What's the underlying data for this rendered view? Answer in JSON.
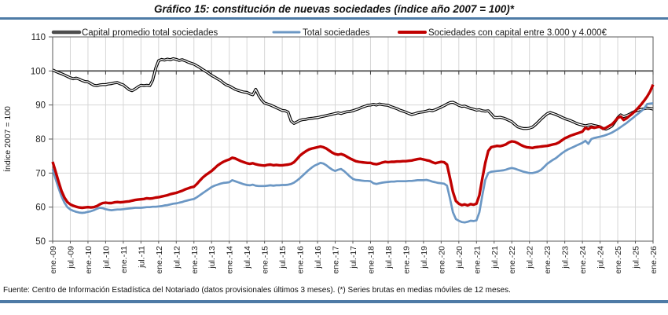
{
  "title": "Gráfico 15: constitución de nuevas sociedades (índice año 2007 = 100)*",
  "footer": {
    "text": "Fuente: Centro de Información Estadística del Notariado (datos provisionales últimos 3 meses). (*) Series brutas en medias móviles de 12 meses."
  },
  "colors": {
    "rule_blue": "#4e7ba6",
    "grid": "#d6d6d6",
    "plot_border": "#595959",
    "axis_100_line": "#3f3f3f",
    "tick": "#595959",
    "text": "#1f1f1f",
    "series_black": "#000000",
    "series_black_center": "#ffffff",
    "series_black_legend": "#4d4d4d",
    "series_blue": "#6b97c4",
    "series_red": "#c00000"
  },
  "chart_data": {
    "type": "line",
    "title": "Gráfico 15: constitución de nuevas sociedades (índice año 2007 = 100)*",
    "ylabel": "Índice 2007 = 100",
    "ylim": [
      50,
      110
    ],
    "yticks": [
      50,
      60,
      70,
      80,
      90,
      100,
      110
    ],
    "grid": true,
    "legend_position": "top",
    "x_axis_cross_value": 100,
    "months_start": "ene-09",
    "months_end": "ene-26",
    "x_tick_labels": [
      "ene.-09",
      "jul.-09",
      "ene.-10",
      "jul.-10",
      "ene.-11",
      "jul.-11",
      "ene.-12",
      "jul.-12",
      "ene.-13",
      "jul.-13",
      "ene.-14",
      "jul.-14",
      "ene.-15",
      "jul.-15",
      "ene.-16",
      "jul.-16",
      "ene.-17",
      "jul.-17",
      "ene.-18",
      "jul.-18",
      "ene.-19",
      "jul.-19",
      "ene.-20",
      "jul.-20",
      "ene.-21",
      "jul.-21",
      "ene.-22",
      "jul.-22",
      "ene.-23",
      "jul.-23",
      "ene.-24",
      "jul.-24",
      "ene.-25",
      "jul.-25",
      "ene.-26"
    ],
    "series": [
      {
        "name": "Capital promedio total sociedades",
        "color_key": "series_black",
        "line_style": "double-outline",
        "values": [
          100.3,
          99.9,
          99.5,
          99.2,
          98.8,
          98.4,
          98.0,
          97.7,
          97.9,
          97.6,
          97.2,
          96.9,
          96.8,
          96.3,
          95.8,
          95.7,
          95.9,
          96.0,
          96.0,
          96.2,
          96.3,
          96.5,
          96.6,
          96.2,
          95.9,
          95.2,
          94.5,
          94.2,
          94.7,
          95.3,
          95.8,
          95.7,
          95.8,
          95.7,
          97.3,
          100.8,
          103.0,
          103.4,
          103.2,
          103.5,
          103.3,
          103.6,
          103.4,
          103.1,
          103.3,
          103.0,
          102.6,
          102.3,
          102.0,
          101.5,
          101.0,
          100.4,
          99.9,
          99.3,
          98.7,
          98.2,
          97.7,
          97.2,
          96.5,
          95.9,
          95.6,
          95.1,
          94.6,
          94.3,
          94.0,
          93.8,
          93.7,
          93.3,
          93.0,
          94.6,
          92.8,
          91.5,
          90.6,
          90.3,
          90.0,
          89.6,
          89.2,
          88.8,
          88.4,
          88.3,
          87.9,
          85.3,
          84.6,
          85.0,
          85.5,
          85.7,
          85.8,
          86.0,
          86.1,
          86.2,
          86.3,
          86.5,
          86.7,
          86.9,
          87.1,
          87.3,
          87.5,
          87.7,
          87.5,
          87.8,
          88.0,
          88.1,
          88.3,
          88.6,
          88.9,
          89.3,
          89.6,
          89.9,
          90.0,
          90.2,
          90.0,
          90.3,
          90.1,
          90.0,
          89.9,
          89.5,
          89.2,
          88.9,
          88.5,
          88.2,
          87.9,
          87.5,
          87.2,
          87.4,
          87.7,
          87.9,
          88.0,
          88.2,
          88.5,
          88.3,
          88.6,
          89.0,
          89.4,
          89.8,
          90.3,
          90.7,
          90.8,
          90.4,
          89.9,
          89.6,
          89.7,
          89.3,
          89.0,
          88.8,
          88.5,
          88.6,
          88.3,
          88.2,
          88.3,
          87.4,
          86.4,
          86.3,
          86.4,
          86.2,
          85.9,
          85.5,
          85.1,
          84.3,
          83.6,
          83.3,
          83.1,
          83.1,
          83.2,
          83.5,
          84.2,
          85.0,
          85.9,
          86.7,
          87.4,
          87.8,
          87.5,
          87.2,
          86.8,
          86.4,
          86.0,
          85.7,
          85.4,
          85.0,
          84.6,
          84.3,
          84.1,
          83.9,
          84.1,
          84.2,
          84.0,
          83.8,
          83.6,
          83.1,
          82.9,
          83.3,
          83.8,
          85.0,
          86.3,
          87.1,
          86.6,
          86.9,
          87.3,
          87.8,
          88.2,
          88.5,
          88.7,
          88.9,
          89.1,
          89.0,
          88.8
        ]
      },
      {
        "name": "Total sociedades",
        "color_key": "series_blue",
        "line_style": "solid",
        "values": [
          71.2,
          68.3,
          65.6,
          63.2,
          61.3,
          60.0,
          59.3,
          58.9,
          58.6,
          58.4,
          58.3,
          58.4,
          58.6,
          58.8,
          59.1,
          59.5,
          59.8,
          59.7,
          59.4,
          59.2,
          59.1,
          59.2,
          59.3,
          59.3,
          59.4,
          59.5,
          59.6,
          59.7,
          59.8,
          59.8,
          59.8,
          59.9,
          60.0,
          60.0,
          60.1,
          60.1,
          60.2,
          60.3,
          60.5,
          60.6,
          60.8,
          61.0,
          61.1,
          61.3,
          61.5,
          61.8,
          62.0,
          62.2,
          62.4,
          62.9,
          63.5,
          64.1,
          64.7,
          65.3,
          65.9,
          66.3,
          66.6,
          66.9,
          67.1,
          67.2,
          67.3,
          67.9,
          67.6,
          67.3,
          67.0,
          66.7,
          66.5,
          66.4,
          66.6,
          66.3,
          66.2,
          66.2,
          66.2,
          66.3,
          66.4,
          66.3,
          66.4,
          66.4,
          66.5,
          66.5,
          66.6,
          66.8,
          67.2,
          67.8,
          68.5,
          69.3,
          70.1,
          70.9,
          71.6,
          72.2,
          72.6,
          73.0,
          72.8,
          72.3,
          71.6,
          71.0,
          70.6,
          71.0,
          71.2,
          70.6,
          69.8,
          69.0,
          68.3,
          68.0,
          67.9,
          67.8,
          67.7,
          67.7,
          67.6,
          67.0,
          66.8,
          67.0,
          67.2,
          67.3,
          67.4,
          67.5,
          67.5,
          67.6,
          67.6,
          67.6,
          67.6,
          67.7,
          67.7,
          67.8,
          67.9,
          67.9,
          67.9,
          68.0,
          67.8,
          67.5,
          67.3,
          67.1,
          67.0,
          66.9,
          66.3,
          62.5,
          58.5,
          56.5,
          56.0,
          55.6,
          55.5,
          55.7,
          56.0,
          55.9,
          56.1,
          58.5,
          63.5,
          68.0,
          70.0,
          70.4,
          70.5,
          70.6,
          70.7,
          70.8,
          71.0,
          71.3,
          71.5,
          71.3,
          71.0,
          70.7,
          70.4,
          70.2,
          70.0,
          70.0,
          70.2,
          70.5,
          71.0,
          71.8,
          72.7,
          73.3,
          73.9,
          74.4,
          75.1,
          75.8,
          76.4,
          76.9,
          77.3,
          77.7,
          78.1,
          78.5,
          78.9,
          79.5,
          78.6,
          80.0,
          80.3,
          80.5,
          80.7,
          80.9,
          81.2,
          81.5,
          81.9,
          82.4,
          82.9,
          83.5,
          84.1,
          84.7,
          85.4,
          86.1,
          86.8,
          87.5,
          88.2,
          89.0,
          90.3,
          90.4,
          90.5
        ]
      },
      {
        "name": "Sociedades con capital entre 3.000 y 4.000€",
        "color_key": "series_red",
        "line_style": "solid",
        "values": [
          73.3,
          70.5,
          67.5,
          64.8,
          62.8,
          61.5,
          60.8,
          60.4,
          60.1,
          59.9,
          59.8,
          59.9,
          60.0,
          59.9,
          60.0,
          60.3,
          60.8,
          61.2,
          61.3,
          61.2,
          61.2,
          61.4,
          61.5,
          61.4,
          61.5,
          61.6,
          61.7,
          61.9,
          62.1,
          62.2,
          62.3,
          62.4,
          62.6,
          62.5,
          62.6,
          62.8,
          62.9,
          63.1,
          63.3,
          63.5,
          63.8,
          64.0,
          64.2,
          64.5,
          64.8,
          65.2,
          65.5,
          65.8,
          66.0,
          66.8,
          67.8,
          68.7,
          69.4,
          70.0,
          70.6,
          71.4,
          72.2,
          72.8,
          73.3,
          73.7,
          74.0,
          74.5,
          74.3,
          73.9,
          73.5,
          73.2,
          72.9,
          72.7,
          72.9,
          72.6,
          72.4,
          72.3,
          72.2,
          72.4,
          72.5,
          72.3,
          72.4,
          72.3,
          72.3,
          72.4,
          72.5,
          72.7,
          73.2,
          74.1,
          75.1,
          75.8,
          76.4,
          76.9,
          77.2,
          77.4,
          77.6,
          77.8,
          77.6,
          77.2,
          76.6,
          76.0,
          75.6,
          75.4,
          75.6,
          75.3,
          74.8,
          74.3,
          73.9,
          73.5,
          73.3,
          73.2,
          73.1,
          73.0,
          73.0,
          72.7,
          72.6,
          72.8,
          73.1,
          73.3,
          73.2,
          73.3,
          73.3,
          73.4,
          73.4,
          73.5,
          73.5,
          73.6,
          73.7,
          73.9,
          74.1,
          74.2,
          74.0,
          73.8,
          73.6,
          73.2,
          72.9,
          73.1,
          73.3,
          73.2,
          72.5,
          68.5,
          64.5,
          61.8,
          61.0,
          60.6,
          60.8,
          60.5,
          60.9,
          60.7,
          61.0,
          63.5,
          68.5,
          73.0,
          76.5,
          77.6,
          77.8,
          78.0,
          77.9,
          78.1,
          78.4,
          79.0,
          79.3,
          79.2,
          78.8,
          78.3,
          77.9,
          77.6,
          77.5,
          77.4,
          77.6,
          77.7,
          77.8,
          77.9,
          78.0,
          78.2,
          78.4,
          78.6,
          79.0,
          79.6,
          80.2,
          80.6,
          81.0,
          81.3,
          81.6,
          81.9,
          82.2,
          83.3,
          82.9,
          83.5,
          83.3,
          83.5,
          83.6,
          83.0,
          83.3,
          83.8,
          84.3,
          85.2,
          86.2,
          86.6,
          85.6,
          86.1,
          86.8,
          87.5,
          88.3,
          89.2,
          90.2,
          91.3,
          92.5,
          94.0,
          96.0
        ]
      }
    ]
  }
}
